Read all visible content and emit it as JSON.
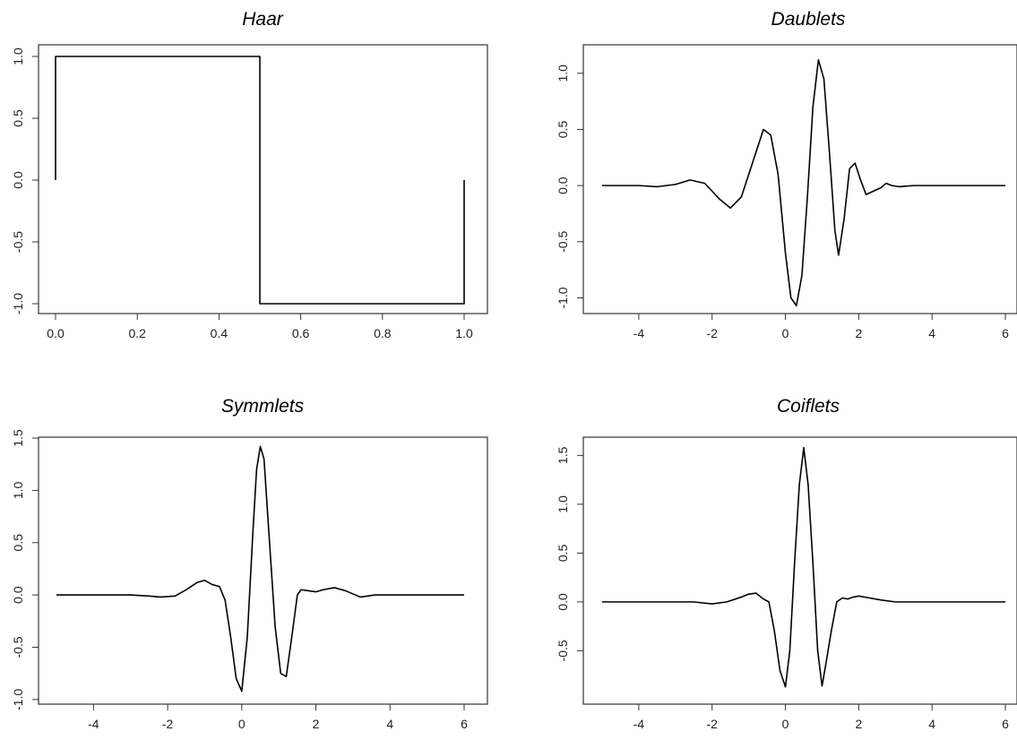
{
  "chart_data": [
    {
      "type": "line",
      "title": "Haar",
      "xlim": [
        0.0,
        1.0
      ],
      "ylim": [
        -1.0,
        1.0
      ],
      "xticks": [
        "0.0",
        "0.2",
        "0.4",
        "0.6",
        "0.8",
        "1.0"
      ],
      "xtick_values": [
        0.0,
        0.2,
        0.4,
        0.6,
        0.8,
        1.0
      ],
      "yticks": [
        "-1.0",
        "-0.5",
        "0.0",
        "0.5",
        "1.0"
      ],
      "ytick_values": [
        -1.0,
        -0.5,
        0.0,
        0.5,
        1.0
      ],
      "grid": false,
      "series": [
        {
          "x": [
            0.0,
            0.0,
            0.5,
            0.5,
            1.0,
            1.0
          ],
          "y": [
            0.0,
            1.0,
            1.0,
            -1.0,
            -1.0,
            0.0
          ]
        }
      ]
    },
    {
      "type": "line",
      "title": "Daublets",
      "xlim": [
        -5,
        6
      ],
      "ylim": [
        -1.1,
        1.15
      ],
      "xticks": [
        "-4",
        "-2",
        "0",
        "2",
        "4",
        "6"
      ],
      "xtick_values": [
        -4,
        -2,
        0,
        2,
        4,
        6
      ],
      "yticks": [
        "-1.0",
        "-0.5",
        "0.0",
        "0.5",
        "1.0"
      ],
      "ytick_values": [
        -1.0,
        -0.5,
        0.0,
        0.5,
        1.0
      ],
      "grid": false,
      "series": [
        {
          "x": [
            -5.0,
            -4.0,
            -3.5,
            -3.0,
            -2.6,
            -2.2,
            -1.8,
            -1.5,
            -1.2,
            -0.9,
            -0.6,
            -0.4,
            -0.2,
            0.0,
            0.15,
            0.3,
            0.45,
            0.6,
            0.75,
            0.9,
            1.05,
            1.2,
            1.35,
            1.45,
            1.6,
            1.75,
            1.9,
            2.05,
            2.2,
            2.4,
            2.6,
            2.75,
            2.9,
            3.1,
            3.5,
            6.0
          ],
          "y": [
            0.0,
            0.0,
            -0.01,
            0.01,
            0.05,
            0.02,
            -0.12,
            -0.2,
            -0.1,
            0.2,
            0.5,
            0.45,
            0.1,
            -0.6,
            -1.0,
            -1.07,
            -0.8,
            -0.1,
            0.7,
            1.12,
            0.95,
            0.3,
            -0.4,
            -0.62,
            -0.3,
            0.15,
            0.2,
            0.05,
            -0.08,
            -0.05,
            -0.02,
            0.02,
            0.0,
            -0.01,
            0.0,
            0.0
          ]
        }
      ]
    },
    {
      "type": "line",
      "title": "Symmlets",
      "xlim": [
        -5,
        6
      ],
      "ylim": [
        -0.95,
        1.5
      ],
      "xticks": [
        "-4",
        "-2",
        "0",
        "2",
        "4",
        "6"
      ],
      "xtick_values": [
        -4,
        -2,
        0,
        2,
        4,
        6
      ],
      "yticks": [
        "-1.0",
        "-0.5",
        "0.0",
        "0.5",
        "1.0",
        "1.5"
      ],
      "ytick_values": [
        -1.0,
        -0.5,
        0.0,
        0.5,
        1.0,
        1.5
      ],
      "grid": false,
      "series": [
        {
          "x": [
            -5.0,
            -3.0,
            -2.5,
            -2.2,
            -1.8,
            -1.5,
            -1.2,
            -1.0,
            -0.8,
            -0.6,
            -0.45,
            -0.3,
            -0.15,
            0.0,
            0.15,
            0.3,
            0.4,
            0.5,
            0.6,
            0.75,
            0.9,
            1.05,
            1.2,
            1.35,
            1.5,
            1.6,
            1.8,
            2.0,
            2.2,
            2.5,
            2.8,
            3.2,
            3.6,
            4.0,
            6.0
          ],
          "y": [
            0.0,
            0.0,
            -0.01,
            -0.02,
            -0.01,
            0.05,
            0.12,
            0.14,
            0.1,
            0.08,
            -0.05,
            -0.4,
            -0.8,
            -0.92,
            -0.4,
            0.6,
            1.2,
            1.42,
            1.3,
            0.5,
            -0.3,
            -0.75,
            -0.78,
            -0.4,
            0.0,
            0.05,
            0.04,
            0.03,
            0.05,
            0.07,
            0.04,
            -0.02,
            0.0,
            0.0,
            0.0
          ]
        }
      ]
    },
    {
      "type": "line",
      "title": "Coiflets",
      "xlim": [
        -5,
        6
      ],
      "ylim": [
        -0.9,
        1.65
      ],
      "xticks": [
        "-4",
        "-2",
        "0",
        "2",
        "4",
        "6"
      ],
      "xtick_values": [
        -4,
        -2,
        0,
        2,
        4,
        6
      ],
      "yticks": [
        "-0.5",
        "0.0",
        "0.5",
        "1.0",
        "1.5"
      ],
      "ytick_values": [
        -0.5,
        0.0,
        0.5,
        1.0,
        1.5
      ],
      "grid": false,
      "series": [
        {
          "x": [
            -5.0,
            -2.5,
            -2.0,
            -1.6,
            -1.2,
            -1.0,
            -0.8,
            -0.6,
            -0.45,
            -0.3,
            -0.15,
            0.0,
            0.12,
            0.25,
            0.38,
            0.5,
            0.62,
            0.75,
            0.88,
            1.0,
            1.12,
            1.25,
            1.4,
            1.55,
            1.7,
            1.85,
            2.0,
            2.3,
            2.6,
            3.0,
            3.5,
            6.0
          ],
          "y": [
            0.0,
            0.0,
            -0.02,
            0.0,
            0.05,
            0.08,
            0.09,
            0.03,
            0.0,
            -0.3,
            -0.7,
            -0.87,
            -0.5,
            0.4,
            1.2,
            1.58,
            1.2,
            0.4,
            -0.5,
            -0.86,
            -0.6,
            -0.3,
            0.0,
            0.04,
            0.03,
            0.05,
            0.06,
            0.04,
            0.02,
            0.0,
            0.0,
            0.0
          ]
        }
      ]
    }
  ]
}
